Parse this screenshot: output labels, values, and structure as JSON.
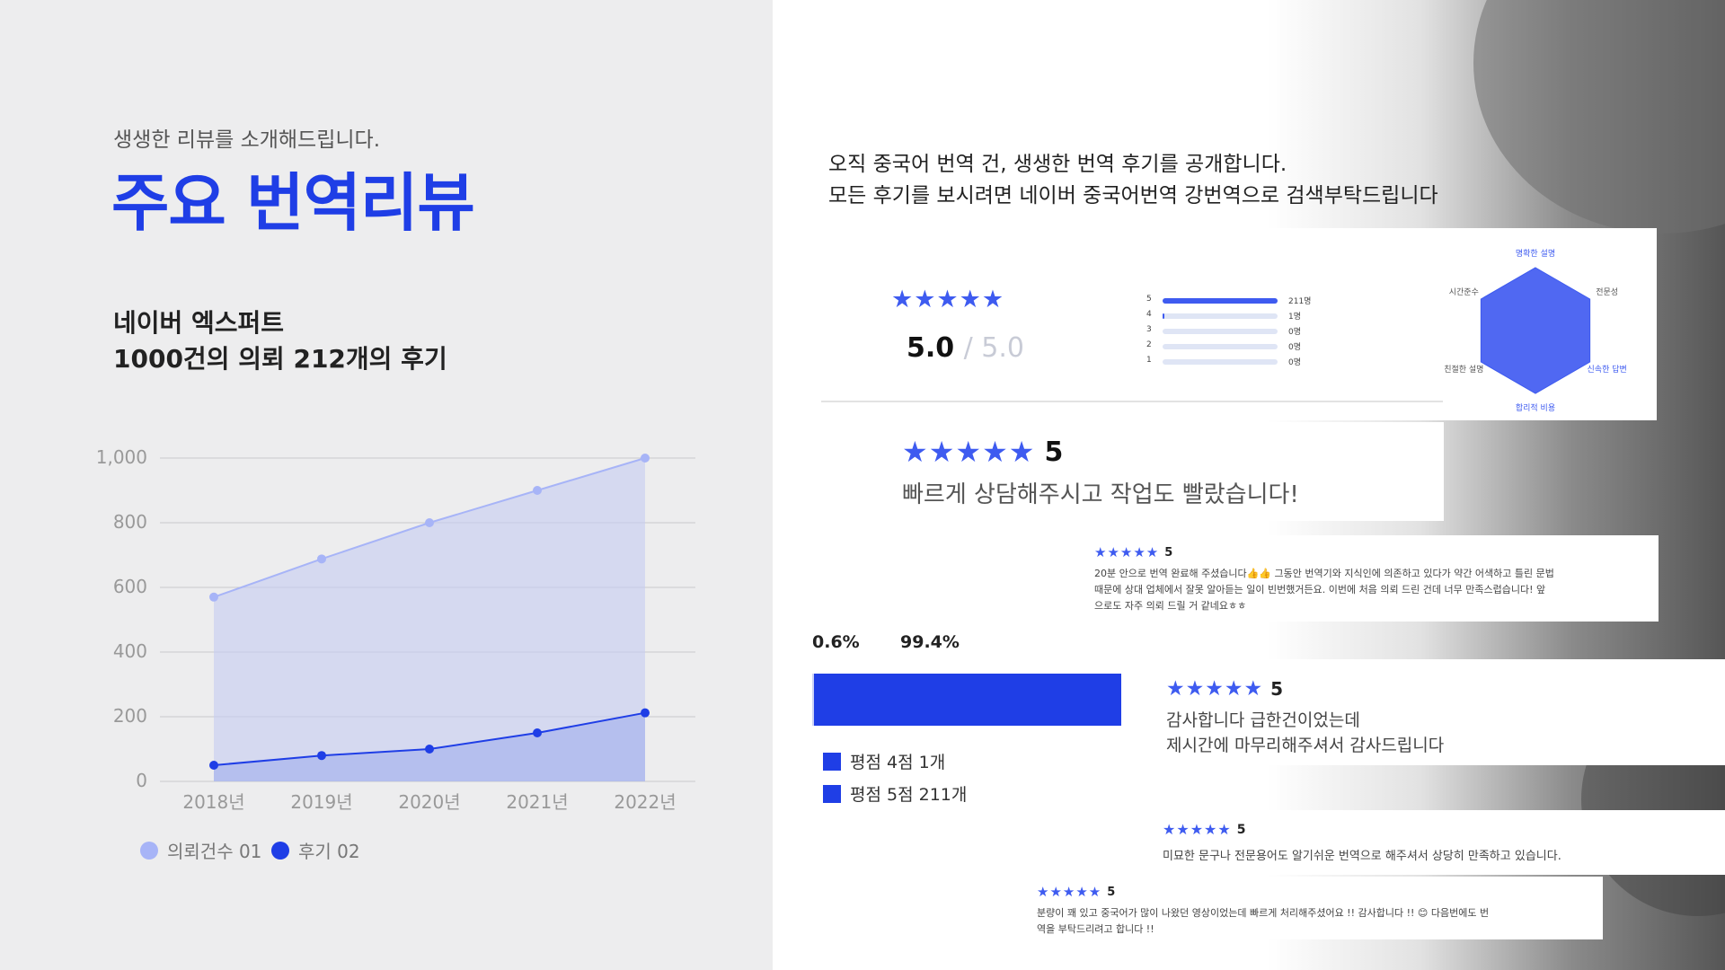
{
  "left": {
    "subtitle": "생생한 리뷰를 소개해드립니다.",
    "title": "주요 번역리뷰",
    "expert_line1": "네이버 엑스퍼트",
    "expert_line2": "1000건의 의뢰 212개의 후기",
    "legend": [
      {
        "label": "의뢰건수 01",
        "color": "#a7b4f7"
      },
      {
        "label": "후기 02",
        "color": "#1f3ee6"
      }
    ]
  },
  "chart_data": {
    "type": "area",
    "categories": [
      "2018년",
      "2019년",
      "2020년",
      "2021년",
      "2022년"
    ],
    "ylim": [
      0,
      1000
    ],
    "yticks": [
      "0",
      "200",
      "400",
      "600",
      "800",
      "1,000"
    ],
    "grid": true,
    "legend_position": "bottom-left",
    "series": [
      {
        "name": "의뢰건수 01",
        "values": [
          570,
          688,
          800,
          900,
          1000
        ],
        "color": "#a7b4f7"
      },
      {
        "name": "후기 02",
        "values": [
          50,
          80,
          100,
          150,
          212
        ],
        "color": "#1f3ee6"
      }
    ]
  },
  "right": {
    "intro_line1": "오직 중국어 번역 건, 생생한 번역 후기를 공개합니다.",
    "intro_line2": "모든 후기를 보시려면 네이버 중국어번역 강번역으로 검색부탁드립니다",
    "summary": {
      "stars": "★★★★★",
      "score": "5.0",
      "score_max": "/ 5.0",
      "distribution": [
        {
          "star": "5",
          "count": "211명",
          "fraction": 1.0
        },
        {
          "star": "4",
          "count": "1명",
          "fraction": 0.005
        },
        {
          "star": "3",
          "count": "0명",
          "fraction": 0
        },
        {
          "star": "2",
          "count": "0명",
          "fraction": 0
        },
        {
          "star": "1",
          "count": "0명",
          "fraction": 0
        }
      ],
      "radar_labels": [
        "명확한 설명",
        "전문성",
        "신속한 답변",
        "합리적 비용",
        "친절한 설명",
        "시간준수"
      ],
      "radar_values": [
        1,
        1,
        1,
        1,
        1,
        1
      ]
    },
    "reviews": [
      {
        "stars": "★★★★★",
        "score": "5",
        "text": "빠르게 상담해주시고 작업도 빨랐습니다!"
      },
      {
        "stars": "★★★★★",
        "score": "5",
        "line1": "20분 안으로 번역 완료해 주셨습니다👍👍 그동안 번역기와 지식인에 의존하고 있다가 약간 어색하고 틀린 문법",
        "line2": "때문에 상대 업체에서 잘못 알아듣는 일이 빈번했거든요. 이번에 처음 의뢰 드린 건데 너무 만족스럽습니다! 앞",
        "line3": "으로도 자주 의뢰 드릴 거 같네요ㅎㅎ"
      },
      {
        "stars": "★★★★★",
        "score": "5",
        "line1": "감사합니다 급한건이었는데",
        "line2": "제시간에 마무리해주셔서 감사드립니다"
      },
      {
        "stars": "★★★★★",
        "score": "5",
        "text": "미묘한 문구나 전문용어도 알기쉬운 번역으로 해주셔서 상당히 만족하고 있습니다."
      },
      {
        "stars": "★★★★★",
        "score": "5",
        "line1": "분량이 꽤 있고 중국어가 많이 나왔던 영상이었는데 빠르게 처리해주셨어요 !! 감사합니다 !! 😊 다음번에도 번",
        "line2": "역을 부탁드리려고 합니다 !!"
      }
    ],
    "ratio": {
      "pct_low": "0.6%",
      "pct_high": "99.4%",
      "fraction": 0.994,
      "legend": [
        "평점 4점 1개",
        "평점 5점 211개"
      ]
    }
  }
}
